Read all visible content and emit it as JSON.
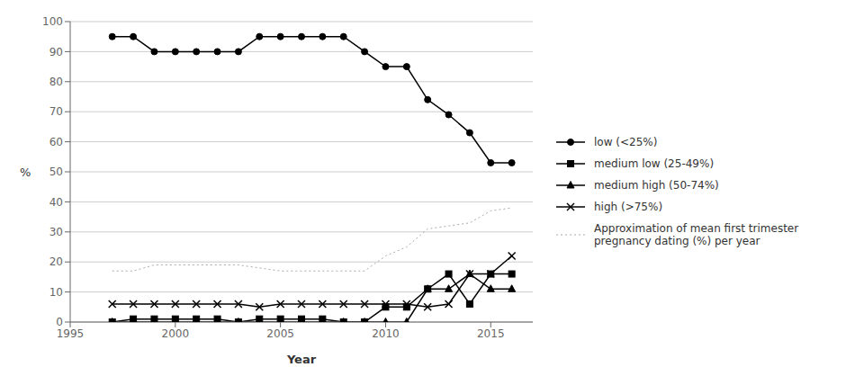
{
  "chart_data": {
    "type": "line",
    "x": [
      1997,
      1998,
      1999,
      2000,
      2001,
      2002,
      2003,
      2004,
      2005,
      2006,
      2007,
      2008,
      2009,
      2010,
      2011,
      2012,
      2013,
      2014,
      2015,
      2016
    ],
    "series": [
      {
        "name": "low (<25%)",
        "color": "#000000",
        "marker": "circle",
        "line_style": "solid",
        "values": [
          95,
          95,
          90,
          90,
          90,
          90,
          90,
          95,
          95,
          95,
          95,
          95,
          90,
          85,
          85,
          74,
          69,
          63,
          53,
          53
        ]
      },
      {
        "name": "medium low (25-49%)",
        "color": "#000000",
        "marker": "square",
        "line_style": "solid",
        "values": [
          0,
          1,
          1,
          1,
          1,
          1,
          0,
          1,
          1,
          1,
          1,
          0,
          0,
          5,
          5,
          11,
          16,
          6,
          16,
          16
        ]
      },
      {
        "name": "medium high (50-74%)",
        "color": "#000000",
        "marker": "triangle",
        "line_style": "solid",
        "values": [
          0,
          0,
          0,
          0,
          0,
          0,
          0,
          0,
          0,
          0,
          0,
          0,
          0,
          0,
          0,
          11,
          11,
          16,
          11,
          11
        ]
      },
      {
        "name": "high (>75%)",
        "color": "#000000",
        "marker": "x",
        "line_style": "solid",
        "values": [
          6,
          6,
          6,
          6,
          6,
          6,
          6,
          5,
          6,
          6,
          6,
          6,
          6,
          6,
          6,
          5,
          6,
          16,
          16,
          22
        ]
      },
      {
        "name": "Approximation of mean first trimester\npregnancy dating (%) per year",
        "color": "#aaaaaa",
        "marker": "none",
        "line_style": "dotted",
        "values": [
          17,
          17,
          19,
          19,
          19,
          19,
          19,
          18,
          17,
          17,
          17,
          17,
          17,
          22,
          25,
          31,
          32,
          33,
          37,
          38
        ]
      }
    ],
    "xlim": [
      1995,
      2017
    ],
    "ylim": [
      0,
      100
    ],
    "xticks": [
      1995,
      2000,
      2005,
      2010,
      2015
    ],
    "yticks": [
      0,
      10,
      20,
      30,
      40,
      50,
      60,
      70,
      80,
      90,
      100
    ],
    "xlabel": "Year",
    "ylabel": "%",
    "grid": true,
    "legend": "right"
  }
}
